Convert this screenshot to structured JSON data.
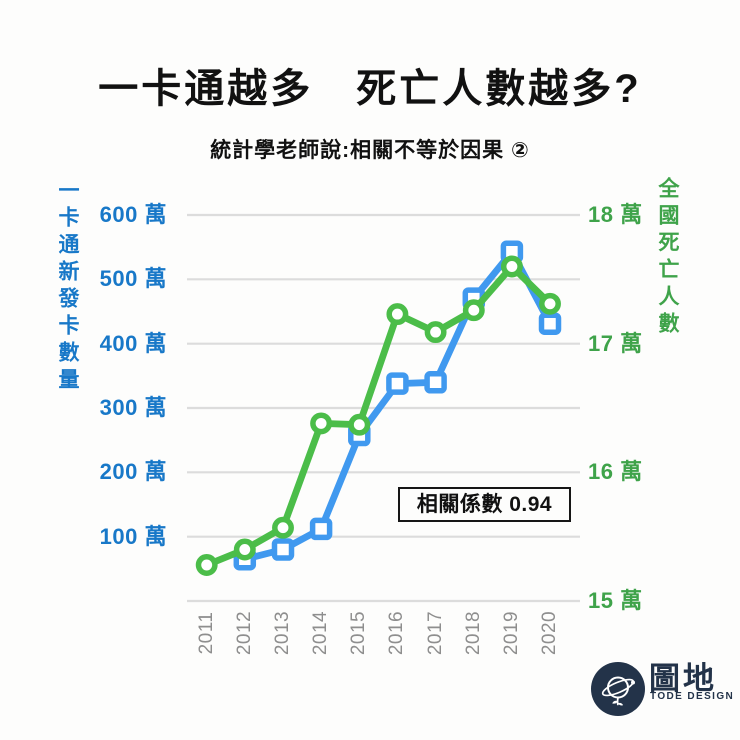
{
  "header": {
    "title": "一卡通越多　死亡人數越多?",
    "subtitle": "統計學老師說:相關不等於因果 ②"
  },
  "chart_data": {
    "type": "line",
    "categories": [
      "2011",
      "2012",
      "2013",
      "2014",
      "2015",
      "2016",
      "2017",
      "2018",
      "2019",
      "2020"
    ],
    "series": [
      {
        "name": "一卡通新發卡數量",
        "axis": "left",
        "marker": "square",
        "color": "#4099EF",
        "unit": "萬",
        "values": [
          null,
          65,
          80,
          112,
          258,
          338,
          340,
          470,
          543,
          431
        ]
      },
      {
        "name": "全國死亡人數",
        "axis": "right",
        "marker": "circle",
        "color": "#4BBD49",
        "unit": "萬",
        "values": [
          15.28,
          15.4,
          15.57,
          16.38,
          16.37,
          17.23,
          17.09,
          17.26,
          17.6,
          17.31
        ]
      }
    ],
    "left_axis": {
      "title": "一卡通新發卡數量",
      "color": "#1878C8",
      "tick_values": [
        600,
        500,
        400,
        300,
        200,
        100
      ],
      "tick_suffix": " 萬",
      "range": [
        0,
        600
      ]
    },
    "right_axis": {
      "title": "全國死亡人數",
      "color": "#3FA34A",
      "tick_values": [
        18,
        17,
        16,
        15
      ],
      "tick_suffix": " 萬",
      "range": [
        15,
        18
      ]
    },
    "grid": true,
    "gridline_count": 7,
    "legend_position": "none",
    "annotation": "相關係數 0.94"
  },
  "footer": {
    "logo_text": "圖地",
    "logo_subtext": "TODE DESIGN"
  },
  "colors": {
    "gridline": "#DCDCDC",
    "year_label": "#8E8E8E",
    "logo_navy": "#233349",
    "title_text": "#111111",
    "annotation_border": "#161616"
  }
}
